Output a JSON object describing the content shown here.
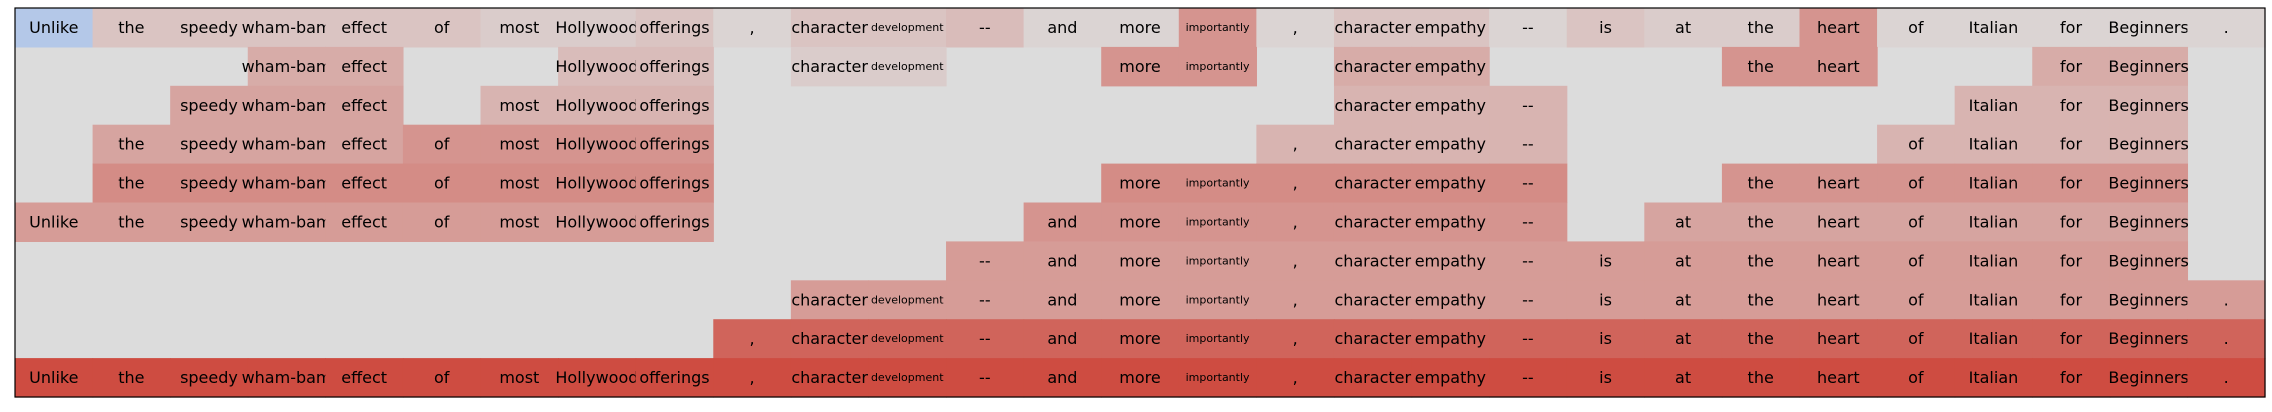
{
  "chart_data": {
    "type": "heatmap",
    "tokens": [
      "Unlike",
      "the",
      "speedy",
      "wham-bam",
      "effect",
      "of",
      "most",
      "Hollywood",
      "offerings",
      ",",
      "character",
      "development",
      "--",
      "and",
      "more",
      "importantly",
      ",",
      "character",
      "empathy",
      "--",
      "is",
      "at",
      "the",
      "heart",
      "of",
      "Italian",
      "for",
      "Beginners",
      "."
    ],
    "small_tokens": [
      11,
      15
    ],
    "rows": [
      {
        "values": [
          -0.3,
          0.15,
          0.15,
          0.15,
          0.15,
          0.15,
          0.1,
          0.1,
          0.15,
          0.05,
          0.15,
          0.15,
          0.2,
          0.05,
          0.05,
          0.45,
          0.05,
          0.15,
          0.15,
          0.05,
          0.15,
          0.1,
          0.1,
          0.45,
          0.05,
          0.05,
          0.05,
          0.05,
          0.05
        ],
        "visible": [
          1,
          1,
          1,
          1,
          1,
          1,
          1,
          1,
          1,
          1,
          1,
          1,
          1,
          1,
          1,
          1,
          1,
          1,
          1,
          1,
          1,
          1,
          1,
          1,
          1,
          1,
          1,
          1,
          1
        ]
      },
      {
        "values": [
          0,
          0,
          0,
          0.3,
          0.3,
          0,
          0,
          0.2,
          0.2,
          0,
          0.1,
          0.1,
          0,
          0,
          0.45,
          0.45,
          0,
          0.3,
          0.3,
          0,
          0,
          0,
          0.45,
          0.45,
          0,
          0,
          0.3,
          0.3,
          0
        ],
        "visible": [
          0,
          0,
          0,
          1,
          1,
          0,
          0,
          1,
          1,
          0,
          1,
          1,
          0,
          0,
          1,
          1,
          0,
          1,
          1,
          0,
          0,
          0,
          1,
          1,
          0,
          0,
          1,
          1,
          0
        ]
      },
      {
        "values": [
          0,
          0,
          0.35,
          0.35,
          0.35,
          0,
          0.25,
          0.25,
          0.25,
          0,
          0,
          0,
          0,
          0,
          0,
          0,
          0,
          0.25,
          0.25,
          0.25,
          0,
          0,
          0,
          0,
          0,
          0.25,
          0.25,
          0.25,
          0
        ],
        "visible": [
          0,
          0,
          1,
          1,
          1,
          0,
          1,
          1,
          1,
          0,
          0,
          0,
          0,
          0,
          0,
          0,
          0,
          1,
          1,
          1,
          0,
          0,
          0,
          0,
          0,
          1,
          1,
          1,
          0
        ]
      },
      {
        "values": [
          0,
          0.35,
          0.35,
          0.35,
          0.35,
          0.45,
          0.45,
          0.45,
          0.45,
          0,
          0,
          0,
          0,
          0,
          0,
          0,
          0.25,
          0.25,
          0.25,
          0.25,
          0,
          0,
          0,
          0,
          0.25,
          0.25,
          0.25,
          0.25,
          0
        ],
        "visible": [
          0,
          1,
          1,
          1,
          1,
          1,
          1,
          1,
          1,
          0,
          0,
          0,
          0,
          0,
          0,
          0,
          1,
          1,
          1,
          1,
          0,
          0,
          0,
          0,
          1,
          1,
          1,
          1,
          0
        ]
      },
      {
        "values": [
          0,
          0.5,
          0.5,
          0.5,
          0.5,
          0.5,
          0.5,
          0.5,
          0.5,
          0,
          0,
          0,
          0,
          0,
          0.5,
          0.5,
          0.5,
          0.5,
          0.5,
          0.5,
          0,
          0,
          0.45,
          0.45,
          0.45,
          0.45,
          0.45,
          0.45,
          0
        ],
        "visible": [
          0,
          1,
          1,
          1,
          1,
          1,
          1,
          1,
          1,
          0,
          0,
          0,
          0,
          0,
          1,
          1,
          1,
          1,
          1,
          1,
          0,
          0,
          1,
          1,
          1,
          1,
          1,
          1,
          0
        ]
      },
      {
        "values": [
          0.4,
          0.4,
          0.4,
          0.4,
          0.4,
          0.4,
          0.4,
          0.4,
          0.4,
          0,
          0,
          0,
          0,
          0.45,
          0.45,
          0.45,
          0.45,
          0.45,
          0.45,
          0.45,
          0,
          0.35,
          0.35,
          0.35,
          0.35,
          0.35,
          0.35,
          0.35,
          0
        ],
        "visible": [
          1,
          1,
          1,
          1,
          1,
          1,
          1,
          1,
          1,
          0,
          0,
          0,
          0,
          1,
          1,
          1,
          1,
          1,
          1,
          1,
          0,
          1,
          1,
          1,
          1,
          1,
          1,
          1,
          0
        ]
      },
      {
        "values": [
          0,
          0,
          0,
          0,
          0,
          0,
          0,
          0,
          0,
          0,
          0,
          0,
          0.4,
          0.4,
          0.4,
          0.4,
          0.4,
          0.4,
          0.4,
          0.4,
          0.4,
          0.4,
          0.4,
          0.4,
          0.4,
          0.4,
          0.4,
          0.4,
          0
        ],
        "visible": [
          0,
          0,
          0,
          0,
          0,
          0,
          0,
          0,
          0,
          0,
          0,
          0,
          1,
          1,
          1,
          1,
          1,
          1,
          1,
          1,
          1,
          1,
          1,
          1,
          1,
          1,
          1,
          1,
          0
        ]
      },
      {
        "values": [
          0,
          0,
          0,
          0,
          0,
          0,
          0,
          0,
          0,
          0,
          0.4,
          0.4,
          0.4,
          0.4,
          0.4,
          0.4,
          0.4,
          0.4,
          0.4,
          0.4,
          0.4,
          0.4,
          0.4,
          0.4,
          0.4,
          0.4,
          0.4,
          0.4,
          0.4
        ],
        "visible": [
          0,
          0,
          0,
          0,
          0,
          0,
          0,
          0,
          0,
          0,
          1,
          1,
          1,
          1,
          1,
          1,
          1,
          1,
          1,
          1,
          1,
          1,
          1,
          1,
          1,
          1,
          1,
          1,
          1
        ]
      },
      {
        "values": [
          0,
          0,
          0,
          0,
          0,
          0,
          0,
          0,
          0,
          0.75,
          0.75,
          0.75,
          0.75,
          0.75,
          0.75,
          0.75,
          0.75,
          0.75,
          0.75,
          0.75,
          0.75,
          0.75,
          0.75,
          0.75,
          0.75,
          0.75,
          0.75,
          0.75,
          0.75
        ],
        "visible": [
          0,
          0,
          0,
          0,
          0,
          0,
          0,
          0,
          0,
          1,
          1,
          1,
          1,
          1,
          1,
          1,
          1,
          1,
          1,
          1,
          1,
          1,
          1,
          1,
          1,
          1,
          1,
          1,
          1
        ]
      },
      {
        "values": [
          0.9,
          0.9,
          0.9,
          0.9,
          0.9,
          0.9,
          0.9,
          0.9,
          0.9,
          0.9,
          0.9,
          0.9,
          0.9,
          0.9,
          0.9,
          0.9,
          0.9,
          0.9,
          0.9,
          0.9,
          0.9,
          0.9,
          0.9,
          0.9,
          0.9,
          0.9,
          0.9,
          0.9,
          0.9
        ],
        "visible": [
          1,
          1,
          1,
          1,
          1,
          1,
          1,
          1,
          1,
          1,
          1,
          1,
          1,
          1,
          1,
          1,
          1,
          1,
          1,
          1,
          1,
          1,
          1,
          1,
          1,
          1,
          1,
          1,
          1
        ]
      }
    ],
    "colors": {
      "background": "#dcdcdc",
      "negative": "#b4c8e8",
      "neutral": "#dcdcdc",
      "positive": "#cc3c30",
      "border": "#000000"
    }
  }
}
